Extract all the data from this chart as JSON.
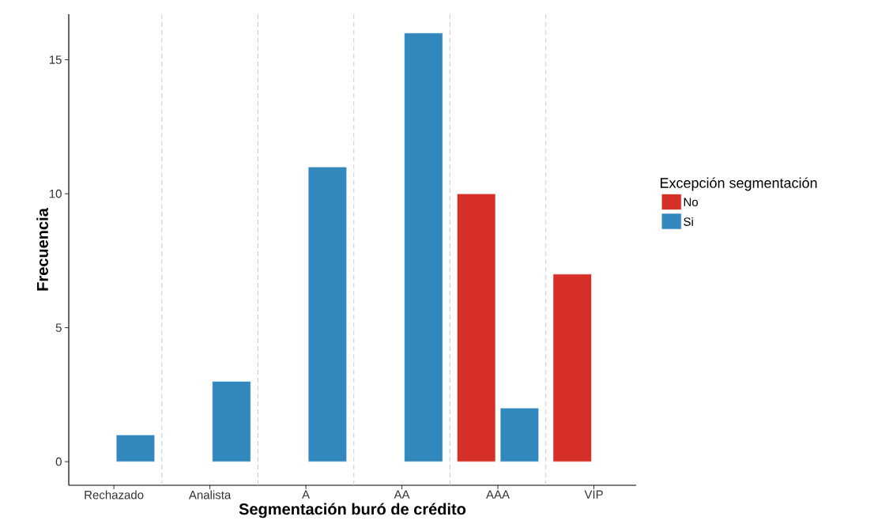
{
  "chart_data": {
    "type": "bar",
    "xlabel": "Segmentación buró de crédito",
    "ylabel": "Frecuencia",
    "legend_title": "Excepción segmentación",
    "categories": [
      "Rechazado",
      "Analista",
      "A",
      "AA",
      "AAA",
      "VIP"
    ],
    "series": [
      {
        "name": "No",
        "color": "#d52f27",
        "values": [
          null,
          null,
          null,
          null,
          10,
          7
        ]
      },
      {
        "name": "Si",
        "color": "#3287bd",
        "values": [
          1,
          3,
          11,
          16,
          2,
          null
        ]
      }
    ],
    "ylim": [
      -0.88,
      16.7
    ],
    "yticks": [
      0,
      5,
      10,
      15
    ],
    "grid": false,
    "legend": "right"
  }
}
